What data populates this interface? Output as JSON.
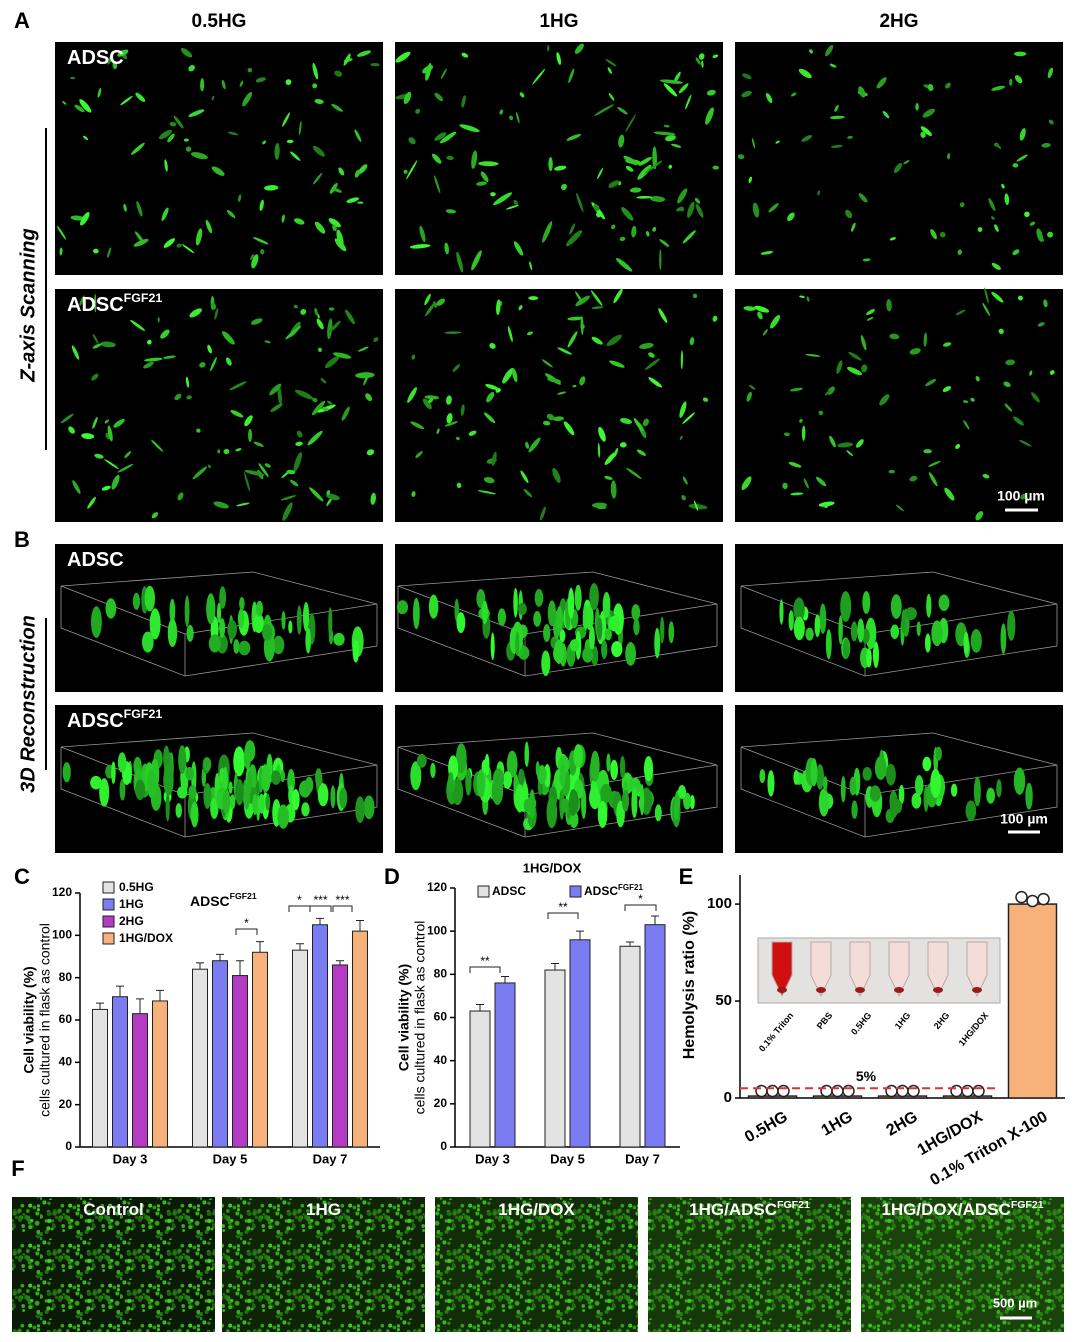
{
  "panel_labels": [
    "A",
    "B",
    "C",
    "D",
    "E",
    "F"
  ],
  "panel_a": {
    "columns": [
      "0.5HG",
      "1HG",
      "2HG"
    ],
    "rows": [
      {
        "label": "ADSC"
      },
      {
        "label": "ADSC",
        "sup": "FGF21"
      }
    ],
    "side_label": "Z-axis Scanning",
    "scale_bar": "100 µm"
  },
  "panel_b": {
    "rows": [
      {
        "label": "ADSC"
      },
      {
        "label": "ADSC",
        "sup": "FGF21"
      }
    ],
    "side_label": "3D Reconstruction",
    "scale_bar": "100 µm"
  },
  "panel_f": {
    "labels": [
      {
        "label": "Control"
      },
      {
        "label": "1HG"
      },
      {
        "label": "1HG/DOX"
      },
      {
        "label": "1HG/ADSC",
        "sup": "FGF21"
      },
      {
        "label": "1HG/DOX/ADSC",
        "sup": "FGF21"
      }
    ],
    "scale_bar": "500 µm"
  },
  "chart_data": [
    {
      "type": "bar",
      "annotation": {
        "text": "ADSC",
        "sup": "FGF21"
      },
      "y_label": [
        "Cell viability (%)",
        "cells cultured in flask as control"
      ],
      "categories": [
        "Day 3",
        "Day 5",
        "Day 7"
      ],
      "series": [
        {
          "name": "0.5HG",
          "color": "#e3e3e3",
          "values": [
            65,
            84,
            93
          ],
          "errors": [
            3,
            3,
            3
          ]
        },
        {
          "name": "1HG",
          "color": "#7c7cf2",
          "values": [
            71,
            88,
            105
          ],
          "errors": [
            5,
            3,
            3
          ]
        },
        {
          "name": "2HG",
          "color": "#b43cc4",
          "values": [
            63,
            81,
            86
          ],
          "errors": [
            7,
            7,
            2
          ]
        },
        {
          "name": "1HG/DOX",
          "color": "#f7b27b",
          "values": [
            69,
            92,
            102
          ],
          "errors": [
            5,
            5,
            5
          ]
        }
      ],
      "significance": [
        "*",
        "*",
        "***",
        "***"
      ],
      "ylim": [
        0,
        120
      ],
      "yticks": [
        0,
        20,
        40,
        60,
        80,
        100,
        120
      ]
    },
    {
      "type": "bar",
      "title": "1HG/DOX",
      "y_label": [
        "Cell viability (%)",
        "cells cultured in flask as control"
      ],
      "categories": [
        "Day 3",
        "Day 5",
        "Day 7"
      ],
      "series": [
        {
          "name": "ADSC",
          "color": "#e3e3e3",
          "values": [
            63,
            82,
            93
          ],
          "errors": [
            3,
            3,
            2
          ]
        },
        {
          "name": "ADSC",
          "sup": "FGF21",
          "color": "#7c7cf2",
          "values": [
            76,
            96,
            103
          ],
          "errors": [
            3,
            4,
            4
          ]
        }
      ],
      "significance": [
        "**",
        "**",
        "*"
      ],
      "ylim": [
        0,
        120
      ],
      "yticks": [
        0,
        20,
        40,
        60,
        80,
        100,
        120
      ]
    },
    {
      "type": "bar",
      "y_label": "Hemolysis ratio (%)",
      "categories": [
        "0.5HG",
        "1HG",
        "2HG",
        "1HG/DOX",
        "0.1% Triton X-100"
      ],
      "values": [
        1,
        1,
        1,
        1,
        100
      ],
      "points": [
        [
          1,
          1,
          1
        ],
        [
          1,
          1,
          1
        ],
        [
          1,
          1,
          1
        ],
        [
          1,
          1,
          1
        ],
        [
          101,
          99,
          100
        ]
      ],
      "color": "#f7b27b",
      "threshold": {
        "value": 5,
        "label": "5%",
        "color": "#e03030"
      },
      "inset_labels": [
        "0.1% Triton",
        "PBS",
        "0.5HG",
        "1HG",
        "2HG",
        "1HG/DOX"
      ],
      "ylim": [
        0,
        115
      ],
      "yticks": [
        0,
        50,
        100
      ]
    }
  ]
}
